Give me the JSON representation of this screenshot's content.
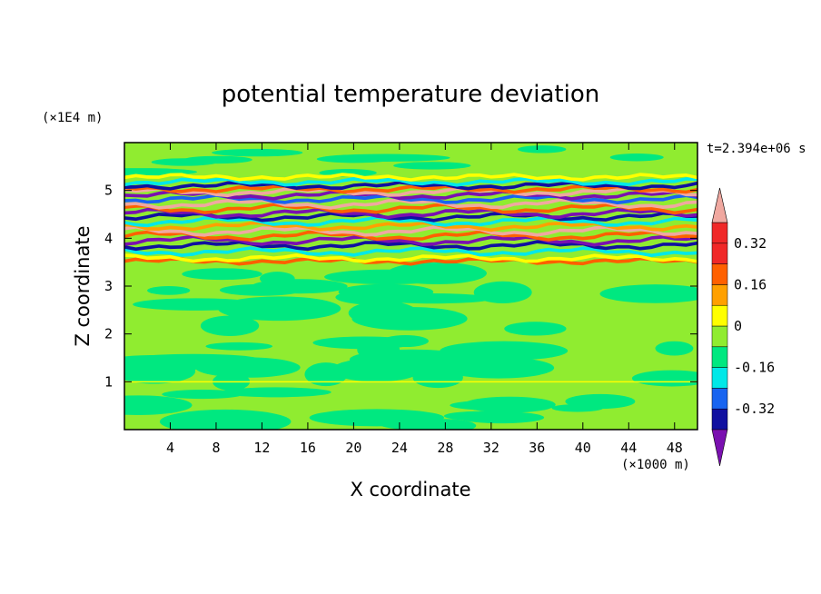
{
  "chart_data": {
    "type": "heatmap",
    "title": "potential temperature deviation",
    "xlabel": "X coordinate",
    "ylabel": "Z coordinate",
    "x_units": "(×1000 m)",
    "y_units": "(×1E4 m)",
    "time_label": "t=2.394e+06 s",
    "xlim": [
      0,
      50
    ],
    "ylim": [
      0,
      6
    ],
    "x_ticks": [
      4,
      8,
      12,
      16,
      20,
      24,
      28,
      32,
      36,
      40,
      44,
      48
    ],
    "y_ticks": [
      1,
      2,
      3,
      4,
      5
    ],
    "colorbar": {
      "levels": [
        -0.4,
        -0.32,
        -0.24,
        -0.16,
        -0.08,
        0,
        0.08,
        0.16,
        0.24,
        0.32,
        0.4
      ],
      "labels": [
        "0.32",
        "0.16",
        "0",
        "-0.16",
        "-0.32"
      ],
      "label_values": [
        0.32,
        0.16,
        0,
        -0.16,
        -0.32
      ],
      "colors": [
        "#7a10b0",
        "#1010a0",
        "#1864f0",
        "#00e8e8",
        "#00e880",
        "#90ec30",
        "#ffff00",
        "#ffa000",
        "#ff6000",
        "#f02828",
        "#f0a8a0"
      ],
      "extend": "both"
    },
    "bands": [
      {
        "z": 3.52,
        "color": "#ff6000",
        "amp": 0.03
      },
      {
        "z": 3.58,
        "color": "#ffff00",
        "amp": 0.04
      },
      {
        "z": 3.72,
        "color": "#00e8e8",
        "amp": 0.05
      },
      {
        "z": 3.85,
        "color": "#1010a0",
        "amp": 0.05
      },
      {
        "z": 3.95,
        "color": "#7a10b0",
        "amp": 0.06
      },
      {
        "z": 4.05,
        "color": "#ff6000",
        "amp": 0.06
      },
      {
        "z": 4.15,
        "color": "#f0a8a0",
        "amp": 0.06
      },
      {
        "z": 4.25,
        "color": "#ffa000",
        "amp": 0.05
      },
      {
        "z": 4.35,
        "color": "#00e8e8",
        "amp": 0.06
      },
      {
        "z": 4.45,
        "color": "#1010a0",
        "amp": 0.05
      },
      {
        "z": 4.52,
        "color": "#7a10b0",
        "amp": 0.06
      },
      {
        "z": 4.62,
        "color": "#ff6000",
        "amp": 0.06
      },
      {
        "z": 4.72,
        "color": "#f0a8a0",
        "amp": 0.06
      },
      {
        "z": 4.82,
        "color": "#1864f0",
        "amp": 0.05
      },
      {
        "z": 4.9,
        "color": "#7a10b0",
        "amp": 0.05
      },
      {
        "z": 4.97,
        "color": "#f0a8a0",
        "amp": 0.05
      },
      {
        "z": 5.03,
        "color": "#ff6000",
        "amp": 0.04
      },
      {
        "z": 5.1,
        "color": "#1010a0",
        "amp": 0.04
      },
      {
        "z": 5.18,
        "color": "#00e8e8",
        "amp": 0.04
      },
      {
        "z": 5.28,
        "color": "#ffff00",
        "amp": 0.03
      }
    ]
  }
}
